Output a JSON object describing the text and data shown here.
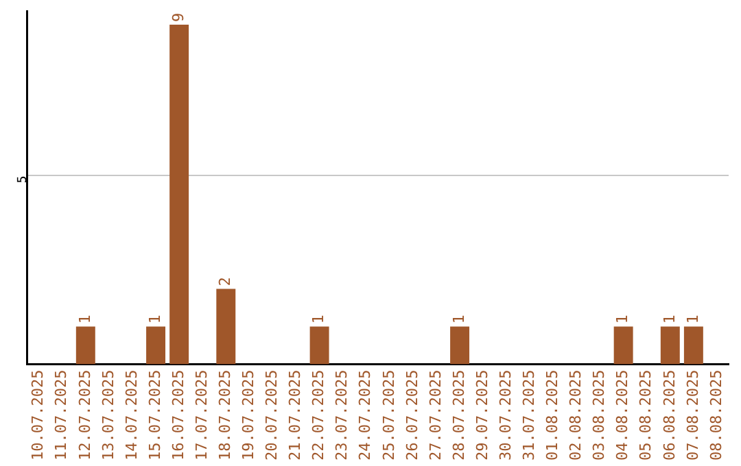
{
  "chart_data": {
    "type": "bar",
    "categories": [
      "10.07.2025",
      "11.07.2025",
      "12.07.2025",
      "13.07.2025",
      "14.07.2025",
      "15.07.2025",
      "16.07.2025",
      "17.07.2025",
      "18.07.2025",
      "19.07.2025",
      "20.07.2025",
      "21.07.2025",
      "22.07.2025",
      "23.07.2025",
      "24.07.2025",
      "25.07.2025",
      "26.07.2025",
      "27.07.2025",
      "28.07.2025",
      "29.07.2025",
      "30.07.2025",
      "31.07.2025",
      "01.08.2025",
      "02.08.2025",
      "03.08.2025",
      "04.08.2025",
      "05.08.2025",
      "06.08.2025",
      "07.08.2025",
      "08.08.2025"
    ],
    "values": [
      0,
      0,
      1,
      0,
      0,
      1,
      9,
      0,
      2,
      0,
      0,
      0,
      1,
      0,
      0,
      0,
      0,
      0,
      1,
      0,
      0,
      0,
      0,
      0,
      0,
      1,
      0,
      1,
      1,
      0
    ],
    "value_labels": [
      null,
      null,
      "1",
      null,
      null,
      "1",
      "9",
      null,
      "2",
      null,
      null,
      null,
      "1",
      null,
      null,
      null,
      null,
      null,
      "1",
      null,
      null,
      null,
      null,
      null,
      null,
      "1",
      null,
      "1",
      "1",
      null
    ],
    "color": "#a0572a",
    "ylim": [
      0,
      9.35
    ],
    "yticks": [
      5
    ],
    "grid": "y",
    "legend": false
  }
}
